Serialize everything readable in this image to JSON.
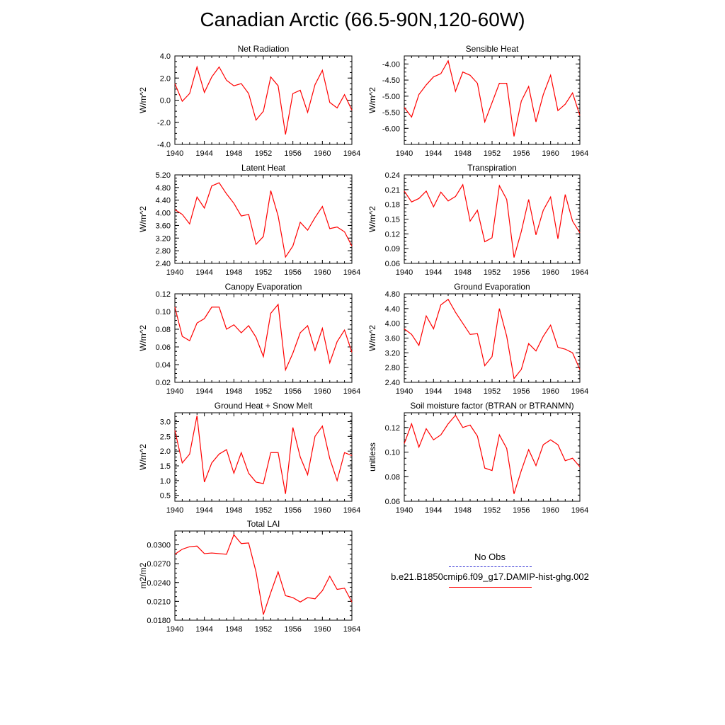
{
  "figure": {
    "title": "Canadian Arctic (66.5-90N,120-60W)",
    "line_color": "#ff0000",
    "obs_color": "#3b3bd6"
  },
  "legend": {
    "obs_label": "No Obs",
    "model_label": "b.e21.B1850cmip6.f09_g17.DAMIP-hist-ghg.002"
  },
  "chart_data": [
    {
      "type": "line",
      "title": "Net Radiation",
      "ylabel": "W/m^2",
      "xlim": [
        1940,
        1964
      ],
      "xticks": [
        "1940",
        "1944",
        "1948",
        "1952",
        "1956",
        "1960",
        "1964"
      ],
      "ylim": [
        -4.0,
        4.0
      ],
      "yticks": [
        "-4.0",
        "-2.0",
        "0.0",
        "2.0",
        "4.0"
      ],
      "ytick_values": [
        -4.0,
        -2.0,
        0.0,
        2.0,
        4.0
      ],
      "x": [
        1940,
        1941,
        1942,
        1943,
        1944,
        1945,
        1946,
        1947,
        1948,
        1949,
        1950,
        1951,
        1952,
        1953,
        1954,
        1955,
        1956,
        1957,
        1958,
        1959,
        1960,
        1961,
        1962,
        1963,
        1964
      ],
      "values": [
        1.5,
        -0.1,
        0.6,
        3.0,
        0.7,
        2.1,
        3.0,
        1.8,
        1.3,
        1.5,
        0.6,
        -1.8,
        -1.0,
        2.1,
        1.3,
        -3.1,
        0.6,
        0.9,
        -1.1,
        1.4,
        2.7,
        -0.2,
        -0.7,
        0.5,
        -0.9
      ]
    },
    {
      "type": "line",
      "title": "Sensible Heat",
      "ylabel": "W/m^2",
      "xlim": [
        1940,
        1964
      ],
      "xticks": [
        "1940",
        "1944",
        "1948",
        "1952",
        "1956",
        "1960",
        "1964"
      ],
      "ylim": [
        -6.5,
        -3.75
      ],
      "yticks": [
        "-6.00",
        "-5.50",
        "-5.00",
        "-4.50",
        "-4.00"
      ],
      "ytick_values": [
        -6.0,
        -5.5,
        -5.0,
        -4.5,
        -4.0
      ],
      "x": [
        1940,
        1941,
        1942,
        1943,
        1944,
        1945,
        1946,
        1947,
        1948,
        1949,
        1950,
        1951,
        1952,
        1953,
        1954,
        1955,
        1956,
        1957,
        1958,
        1959,
        1960,
        1961,
        1962,
        1963,
        1964
      ],
      "values": [
        -5.35,
        -5.65,
        -4.95,
        -4.65,
        -4.4,
        -4.3,
        -3.9,
        -4.85,
        -4.25,
        -4.35,
        -4.6,
        -5.8,
        -5.2,
        -4.6,
        -4.6,
        -6.25,
        -5.15,
        -4.7,
        -5.8,
        -4.95,
        -4.35,
        -5.45,
        -5.25,
        -4.9,
        -5.6
      ]
    },
    {
      "type": "line",
      "title": "Latent Heat",
      "ylabel": "W/m^2",
      "xlim": [
        1940,
        1964
      ],
      "xticks": [
        "1940",
        "1944",
        "1948",
        "1952",
        "1956",
        "1960",
        "1964"
      ],
      "ylim": [
        2.4,
        5.2
      ],
      "yticks": [
        "2.40",
        "2.80",
        "3.20",
        "3.60",
        "4.00",
        "4.40",
        "4.80",
        "5.20"
      ],
      "ytick_values": [
        2.4,
        2.8,
        3.2,
        3.6,
        4.0,
        4.4,
        4.8,
        5.2
      ],
      "x": [
        1940,
        1941,
        1942,
        1943,
        1944,
        1945,
        1946,
        1947,
        1948,
        1949,
        1950,
        1951,
        1952,
        1953,
        1954,
        1955,
        1956,
        1957,
        1958,
        1959,
        1960,
        1961,
        1962,
        1963,
        1964
      ],
      "values": [
        4.1,
        3.95,
        3.65,
        4.5,
        4.15,
        4.85,
        4.95,
        4.6,
        4.3,
        3.9,
        3.95,
        3.0,
        3.25,
        4.7,
        3.9,
        2.6,
        2.95,
        3.7,
        3.45,
        3.85,
        4.2,
        3.5,
        3.55,
        3.4,
        2.95
      ]
    },
    {
      "type": "line",
      "title": "Transpiration",
      "ylabel": "W/m^2",
      "xlim": [
        1940,
        1964
      ],
      "xticks": [
        "1940",
        "1944",
        "1948",
        "1952",
        "1956",
        "1960",
        "1964"
      ],
      "ylim": [
        0.06,
        0.24
      ],
      "yticks": [
        "0.06",
        "0.09",
        "0.12",
        "0.15",
        "0.18",
        "0.21",
        "0.24"
      ],
      "ytick_values": [
        0.06,
        0.09,
        0.12,
        0.15,
        0.18,
        0.21,
        0.24
      ],
      "x": [
        1940,
        1941,
        1942,
        1943,
        1944,
        1945,
        1946,
        1947,
        1948,
        1949,
        1950,
        1951,
        1952,
        1953,
        1954,
        1955,
        1956,
        1957,
        1958,
        1959,
        1960,
        1961,
        1962,
        1963,
        1964
      ],
      "values": [
        0.207,
        0.185,
        0.192,
        0.207,
        0.175,
        0.205,
        0.187,
        0.196,
        0.22,
        0.146,
        0.168,
        0.104,
        0.112,
        0.218,
        0.19,
        0.072,
        0.125,
        0.19,
        0.118,
        0.168,
        0.195,
        0.11,
        0.2,
        0.146,
        0.122
      ]
    },
    {
      "type": "line",
      "title": "Canopy Evaporation",
      "ylabel": "W/m^2",
      "xlim": [
        1940,
        1964
      ],
      "xticks": [
        "1940",
        "1944",
        "1948",
        "1952",
        "1956",
        "1960",
        "1964"
      ],
      "ylim": [
        0.02,
        0.12
      ],
      "yticks": [
        "0.02",
        "0.04",
        "0.06",
        "0.08",
        "0.10",
        "0.12"
      ],
      "ytick_values": [
        0.02,
        0.04,
        0.06,
        0.08,
        0.1,
        0.12
      ],
      "x": [
        1940,
        1941,
        1942,
        1943,
        1944,
        1945,
        1946,
        1947,
        1948,
        1949,
        1950,
        1951,
        1952,
        1953,
        1954,
        1955,
        1956,
        1957,
        1958,
        1959,
        1960,
        1961,
        1962,
        1963,
        1964
      ],
      "values": [
        0.105,
        0.072,
        0.067,
        0.087,
        0.092,
        0.105,
        0.105,
        0.08,
        0.085,
        0.076,
        0.084,
        0.071,
        0.049,
        0.098,
        0.108,
        0.034,
        0.053,
        0.076,
        0.084,
        0.056,
        0.081,
        0.042,
        0.066,
        0.079,
        0.054
      ]
    },
    {
      "type": "line",
      "title": "Ground Evaporation",
      "ylabel": "W/m^2",
      "xlim": [
        1940,
        1964
      ],
      "xticks": [
        "1940",
        "1944",
        "1948",
        "1952",
        "1956",
        "1960",
        "1964"
      ],
      "ylim": [
        2.4,
        4.8
      ],
      "yticks": [
        "2.40",
        "2.80",
        "3.20",
        "3.60",
        "4.00",
        "4.40",
        "4.80"
      ],
      "ytick_values": [
        2.4,
        2.8,
        3.2,
        3.6,
        4.0,
        4.4,
        4.8
      ],
      "x": [
        1940,
        1941,
        1942,
        1943,
        1944,
        1945,
        1946,
        1947,
        1948,
        1949,
        1950,
        1951,
        1952,
        1953,
        1954,
        1955,
        1956,
        1957,
        1958,
        1959,
        1960,
        1961,
        1962,
        1963,
        1964
      ],
      "values": [
        3.85,
        3.7,
        3.4,
        4.2,
        3.85,
        4.5,
        4.65,
        4.3,
        4.0,
        3.7,
        3.72,
        2.85,
        3.1,
        4.4,
        3.65,
        2.5,
        2.75,
        3.45,
        3.25,
        3.65,
        3.95,
        3.35,
        3.3,
        3.2,
        2.75
      ]
    },
    {
      "type": "line",
      "title": "Ground Heat + Snow Melt",
      "ylabel": "W/m^2",
      "xlim": [
        1940,
        1964
      ],
      "xticks": [
        "1940",
        "1944",
        "1948",
        "1952",
        "1956",
        "1960",
        "1964"
      ],
      "ylim": [
        0.3,
        3.3
      ],
      "yticks": [
        "0.5",
        "1.0",
        "1.5",
        "2.0",
        "2.5",
        "3.0"
      ],
      "ytick_values": [
        0.5,
        1.0,
        1.5,
        2.0,
        2.5,
        3.0
      ],
      "x": [
        1940,
        1941,
        1942,
        1943,
        1944,
        1945,
        1946,
        1947,
        1948,
        1949,
        1950,
        1951,
        1952,
        1953,
        1954,
        1955,
        1956,
        1957,
        1958,
        1959,
        1960,
        1961,
        1962,
        1963,
        1964
      ],
      "values": [
        2.7,
        1.6,
        1.9,
        3.2,
        0.95,
        1.6,
        1.9,
        2.05,
        1.25,
        1.95,
        1.25,
        0.95,
        0.9,
        1.95,
        1.95,
        0.55,
        2.8,
        1.8,
        1.2,
        2.5,
        2.85,
        1.75,
        1.0,
        1.95,
        1.85
      ]
    },
    {
      "type": "line",
      "title": "Soil moisture factor (BTRAN or BTRANMN)",
      "ylabel": "unitless",
      "xlim": [
        1940,
        1964
      ],
      "xticks": [
        "1940",
        "1944",
        "1948",
        "1952",
        "1956",
        "1960",
        "1964"
      ],
      "ylim": [
        0.06,
        0.132
      ],
      "yticks": [
        "0.06",
        "0.08",
        "0.10",
        "0.12"
      ],
      "ytick_values": [
        0.06,
        0.08,
        0.1,
        0.12
      ],
      "x": [
        1940,
        1941,
        1942,
        1943,
        1944,
        1945,
        1946,
        1947,
        1948,
        1949,
        1950,
        1951,
        1952,
        1953,
        1954,
        1955,
        1956,
        1957,
        1958,
        1959,
        1960,
        1961,
        1962,
        1963,
        1964
      ],
      "values": [
        0.107,
        0.123,
        0.104,
        0.119,
        0.11,
        0.114,
        0.123,
        0.13,
        0.12,
        0.122,
        0.113,
        0.087,
        0.085,
        0.114,
        0.103,
        0.066,
        0.085,
        0.102,
        0.089,
        0.106,
        0.11,
        0.106,
        0.093,
        0.095,
        0.088
      ]
    },
    {
      "type": "line",
      "title": "Total LAI",
      "ylabel": "m2/m2",
      "xlim": [
        1940,
        1964
      ],
      "xticks": [
        "1940",
        "1944",
        "1948",
        "1952",
        "1956",
        "1960",
        "1964"
      ],
      "ylim": [
        0.018,
        0.0322
      ],
      "yticks": [
        "0.0180",
        "0.0210",
        "0.0240",
        "0.0270",
        "0.0300"
      ],
      "ytick_values": [
        0.018,
        0.021,
        0.024,
        0.027,
        0.03
      ],
      "x": [
        1940,
        1941,
        1942,
        1943,
        1944,
        1945,
        1946,
        1947,
        1948,
        1949,
        1950,
        1951,
        1952,
        1953,
        1954,
        1955,
        1956,
        1957,
        1958,
        1959,
        1960,
        1961,
        1962,
        1963,
        1964
      ],
      "values": [
        0.0285,
        0.0293,
        0.0297,
        0.0298,
        0.0286,
        0.0287,
        0.0286,
        0.0285,
        0.0316,
        0.0302,
        0.0303,
        0.0257,
        0.0189,
        0.0224,
        0.0257,
        0.0219,
        0.0216,
        0.0209,
        0.0216,
        0.0214,
        0.0227,
        0.025,
        0.0229,
        0.0231,
        0.0209
      ]
    }
  ]
}
